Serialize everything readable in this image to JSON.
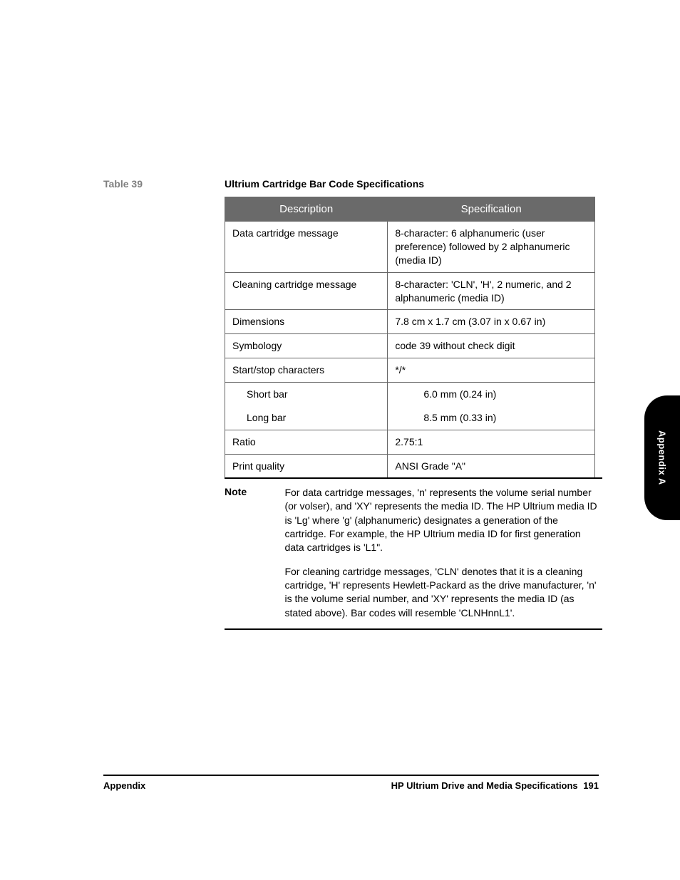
{
  "table": {
    "label": "Table 39",
    "title": "Ultrium Cartridge Bar Code Specifications",
    "columns": [
      "Description",
      "Specification"
    ],
    "rows": [
      {
        "desc": "Data cartridge message",
        "spec": "8-character: 6 alphanumeric (user preference) followed by 2 alphanumeric (media ID)"
      },
      {
        "desc": "Cleaning cartridge message",
        "spec": "8-character: 'CLN', 'H', 2 numeric, and 2 alphanumeric (media ID)"
      },
      {
        "desc": "Dimensions",
        "spec": "7.8 cm x 1.7 cm (3.07 in x 0.67 in)"
      },
      {
        "desc": "Symbology",
        "spec": "code 39 without check digit"
      },
      {
        "desc": "Start/stop characters",
        "spec": "*/*"
      },
      {
        "desc": "Short bar",
        "spec": "6.0 mm (0.24 in)",
        "indent": true,
        "center": true,
        "noTop": true,
        "noBottom": true
      },
      {
        "desc": "Long bar",
        "spec": "8.5 mm (0.33 in)",
        "indent": true,
        "center": true,
        "noTop": true
      },
      {
        "desc": "Ratio",
        "spec": "2.75:1"
      },
      {
        "desc": "Print quality",
        "spec": "ANSI Grade \"A\""
      }
    ]
  },
  "note": {
    "label": "Note",
    "paragraphs": [
      "For data cartridge messages, 'n' represents the volume serial number (or volser), and 'XY' represents the media ID. The HP Ultrium media ID is 'Lg' where 'g' (alphanumeric) designates a generation of the cartridge. For example, the HP Ultrium media ID for first generation data cartridges is 'L1\".",
      "For cleaning cartridge messages, 'CLN' denotes that it is a cleaning cartridge, 'H' represents Hewlett-Packard as the drive manufacturer, 'n' is the volume serial number, and 'XY' represents the media ID (as stated above). Bar codes will resemble 'CLNHnnL1'."
    ]
  },
  "sideTab": "Appendix A",
  "footer": {
    "left": "Appendix",
    "rightTitle": "HP Ultrium Drive and Media Specifications",
    "pageNumber": "191"
  },
  "style": {
    "header_bg": "#6a6a6a",
    "header_fg": "#ffffff",
    "border_color": "#666666",
    "tab_bg": "#000000",
    "tab_fg": "#ffffff",
    "label_color": "#808080"
  }
}
